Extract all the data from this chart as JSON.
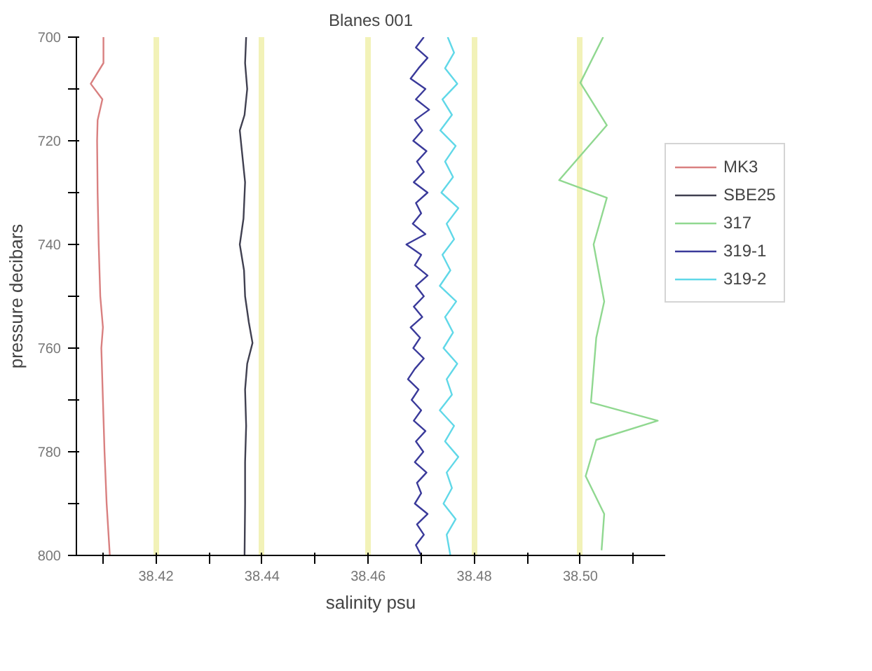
{
  "chart_data": {
    "type": "line",
    "title": "Blanes 001",
    "xlabel": "salinity psu",
    "ylabel": "pressure decibars",
    "orientation": "horizontal",
    "xlim": [
      38.405,
      38.516
    ],
    "ylim": [
      800,
      700
    ],
    "xticks": [
      {
        "value": 38.41,
        "label": null
      },
      38.42,
      {
        "value": 38.43,
        "label": null
      },
      38.44,
      {
        "value": 38.45,
        "label": null
      },
      38.46,
      {
        "value": 38.47,
        "label": null
      },
      38.48,
      {
        "value": 38.49,
        "label": null
      },
      {
        "value": 38.5,
        "label": "38.50"
      },
      {
        "value": 38.51,
        "label": null
      }
    ],
    "yticks": [
      700,
      {
        "value": 710,
        "label": null
      },
      720,
      {
        "value": 730,
        "label": null
      },
      740,
      {
        "value": 750,
        "label": null
      },
      760,
      {
        "value": 770,
        "label": null
      },
      780,
      {
        "value": 790,
        "label": null
      },
      800
    ],
    "grid": "x",
    "legend": "right",
    "series": [
      {
        "name": "MK3",
        "color": "#d98080",
        "x": [
          700,
          705,
          709,
          712,
          716,
          720,
          730,
          740,
          750,
          756,
          760,
          770,
          780,
          790,
          800
        ],
        "values": [
          38.4101,
          38.4101,
          38.4077,
          38.4099,
          38.409,
          38.4089,
          38.409,
          38.4092,
          38.4095,
          38.41,
          38.4097,
          38.41,
          38.4103,
          38.4107,
          38.4113
        ]
      },
      {
        "name": "SBE25",
        "color": "#404050",
        "x": [
          700,
          705,
          710,
          715,
          718,
          722,
          728,
          735,
          740,
          745,
          750,
          755,
          759,
          763,
          768,
          775,
          782,
          790,
          800
        ],
        "values": [
          38.437,
          38.4368,
          38.4372,
          38.4367,
          38.4358,
          38.4362,
          38.4368,
          38.4365,
          38.4358,
          38.4366,
          38.4368,
          38.4375,
          38.4382,
          38.4372,
          38.4368,
          38.437,
          38.4368,
          38.4368,
          38.4367
        ]
      },
      {
        "name": "317",
        "color": "#90d890",
        "x": [
          700,
          708.8,
          717,
          727.6,
          731,
          740,
          751,
          758,
          770.5,
          774,
          777.7,
          784.7,
          792,
          799
        ],
        "values": [
          38.5043,
          38.5,
          38.505,
          38.496,
          38.505,
          38.5025,
          38.5045,
          38.503,
          38.502,
          38.5146,
          38.503,
          38.501,
          38.5045,
          38.504
        ]
      },
      {
        "name": "319-1",
        "color": "#3a3a9a",
        "x": [
          700,
          702,
          704,
          706,
          708,
          710,
          712,
          714,
          716,
          718,
          720,
          722,
          724,
          726,
          728,
          730,
          732,
          734,
          736,
          738,
          740,
          742,
          744,
          746,
          748,
          750,
          752,
          754,
          756,
          758,
          760,
          762,
          764,
          766,
          768,
          770,
          772,
          774,
          776,
          778,
          780,
          782,
          784,
          786,
          788,
          790,
          792,
          794,
          796,
          798,
          800
        ],
        "values": [
          38.4705,
          38.469,
          38.4712,
          38.4695,
          38.468,
          38.4708,
          38.469,
          38.4715,
          38.4688,
          38.4702,
          38.4685,
          38.471,
          38.4692,
          38.4705,
          38.4686,
          38.4712,
          38.469,
          38.47,
          38.4684,
          38.4708,
          38.4672,
          38.47,
          38.4688,
          38.4712,
          38.469,
          38.4705,
          38.4686,
          38.4702,
          38.468,
          38.4698,
          38.4685,
          38.4705,
          38.4688,
          38.4675,
          38.4695,
          38.4682,
          38.47,
          38.4686,
          38.4708,
          38.469,
          38.4704,
          38.4688,
          38.471,
          38.4692,
          38.47,
          38.4688,
          38.4712,
          38.4692,
          38.4705,
          38.469,
          38.47
        ]
      },
      {
        "name": "319-2",
        "color": "#60d8e8",
        "x": [
          700,
          703,
          706,
          709,
          712,
          715,
          718,
          721,
          724,
          727,
          730,
          733,
          736,
          739,
          742,
          745,
          748,
          751,
          754,
          757,
          760,
          763,
          766,
          769,
          772,
          775,
          778,
          781,
          784,
          787,
          790,
          793,
          796,
          800
        ],
        "values": [
          38.475,
          38.4762,
          38.4745,
          38.4768,
          38.474,
          38.4758,
          38.4736,
          38.4765,
          38.4745,
          38.476,
          38.4738,
          38.477,
          38.4748,
          38.4762,
          38.474,
          38.4755,
          38.4735,
          38.4766,
          38.4745,
          38.476,
          38.4742,
          38.4768,
          38.4748,
          38.4758,
          38.4735,
          38.4762,
          38.4745,
          38.477,
          38.4748,
          38.4758,
          38.4742,
          38.4765,
          38.4748,
          38.4755
        ]
      }
    ]
  }
}
